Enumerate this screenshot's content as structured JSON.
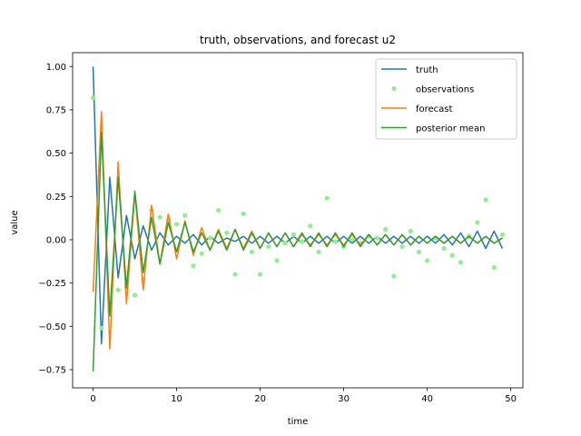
{
  "chart_data": {
    "type": "line",
    "title": "truth, observations, and forecast u2",
    "xlabel": "time",
    "ylabel": "value",
    "xlim": [
      -2.45,
      51.45
    ],
    "ylim": [
      -0.855,
      1.08
    ],
    "xticks": [
      0,
      10,
      20,
      30,
      40,
      50
    ],
    "yticks": [
      -0.75,
      -0.5,
      -0.25,
      0.0,
      0.25,
      0.5,
      0.75,
      1.0
    ],
    "xtick_labels": [
      "0",
      "10",
      "20",
      "30",
      "40",
      "50"
    ],
    "ytick_labels": [
      "−0.75",
      "−0.50",
      "−0.25",
      "0.00",
      "0.25",
      "0.50",
      "0.75",
      "1.00"
    ],
    "grid": false,
    "legend_position": "top-right",
    "x": [
      0,
      1,
      2,
      3,
      4,
      5,
      6,
      7,
      8,
      9,
      10,
      11,
      12,
      13,
      14,
      15,
      16,
      17,
      18,
      19,
      20,
      21,
      22,
      23,
      24,
      25,
      26,
      27,
      28,
      29,
      30,
      31,
      32,
      33,
      34,
      35,
      36,
      37,
      38,
      39,
      40,
      41,
      42,
      43,
      44,
      45,
      46,
      47,
      48,
      49
    ],
    "series": [
      {
        "name": "truth",
        "kind": "line",
        "color": "#1f77b4",
        "values": [
          1.0,
          -0.6,
          0.36,
          -0.22,
          0.14,
          -0.11,
          0.08,
          -0.06,
          0.04,
          -0.03,
          0.02,
          -0.02,
          0.03,
          -0.03,
          0.02,
          -0.02,
          0.01,
          -0.01,
          0.02,
          -0.02,
          0.02,
          -0.02,
          0.02,
          -0.02,
          0.02,
          -0.02,
          0.02,
          -0.02,
          0.02,
          -0.02,
          0.02,
          -0.02,
          0.02,
          -0.02,
          0.02,
          -0.02,
          0.02,
          -0.02,
          0.02,
          -0.02,
          0.02,
          -0.02,
          0.03,
          -0.03,
          0.04,
          -0.04,
          0.05,
          -0.05,
          0.05,
          -0.05
        ]
      },
      {
        "name": "observations",
        "kind": "scatter",
        "color": "#90ee90",
        "values": [
          0.82,
          -0.51,
          -0.41,
          -0.29,
          -0.27,
          -0.32,
          -0.23,
          0.17,
          0.13,
          0.11,
          0.09,
          0.14,
          -0.15,
          -0.08,
          0.01,
          0.17,
          0.04,
          -0.2,
          0.15,
          -0.07,
          -0.2,
          -0.04,
          -0.12,
          -0.02,
          0.03,
          -0.01,
          0.08,
          -0.07,
          0.24,
          -0.01,
          -0.04,
          0.0,
          -0.02,
          0.02,
          0.01,
          0.06,
          -0.21,
          -0.04,
          0.05,
          -0.07,
          -0.12,
          0.01,
          -0.05,
          -0.09,
          -0.13,
          0.02,
          0.1,
          0.23,
          -0.16,
          0.03
        ]
      },
      {
        "name": "forecast",
        "kind": "line",
        "color": "#ff7f0e",
        "values": [
          -0.3,
          0.74,
          -0.63,
          0.45,
          -0.37,
          0.27,
          -0.29,
          0.2,
          -0.14,
          0.15,
          -0.11,
          0.11,
          -0.09,
          0.07,
          -0.06,
          0.06,
          -0.05,
          0.06,
          -0.05,
          0.05,
          -0.05,
          0.04,
          -0.04,
          0.04,
          -0.04,
          0.03,
          -0.03,
          0.03,
          -0.03,
          0.03,
          -0.03,
          0.03,
          -0.03,
          0.03,
          -0.03,
          0.03,
          -0.03,
          0.03,
          -0.03,
          0.02,
          -0.02,
          0.02,
          -0.02,
          0.02,
          -0.02,
          0.02,
          -0.02,
          0.02,
          -0.02,
          0.01
        ]
      },
      {
        "name": "posterior mean",
        "kind": "line",
        "color": "#2ca02c",
        "values": [
          -0.76,
          0.62,
          -0.44,
          0.36,
          -0.28,
          0.28,
          -0.19,
          0.13,
          -0.14,
          0.1,
          -0.07,
          0.1,
          -0.07,
          0.04,
          -0.06,
          0.05,
          -0.06,
          0.06,
          -0.06,
          0.04,
          -0.05,
          0.04,
          -0.04,
          0.04,
          -0.04,
          0.04,
          -0.04,
          0.04,
          -0.04,
          0.04,
          -0.04,
          0.04,
          -0.04,
          0.03,
          -0.03,
          0.03,
          -0.03,
          0.03,
          -0.03,
          0.02,
          -0.02,
          0.02,
          -0.02,
          0.02,
          -0.02,
          0.02,
          -0.02,
          0.02,
          -0.02,
          0.01
        ]
      }
    ]
  }
}
